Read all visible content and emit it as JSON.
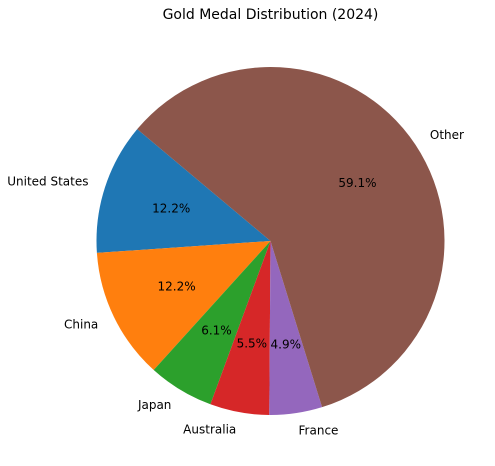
{
  "chart_data": {
    "type": "pie",
    "title": "Gold Medal Distribution (2024)",
    "start_angle_deg": 140,
    "direction": "counterclockwise",
    "categories": [
      "United States",
      "China",
      "Japan",
      "Australia",
      "France",
      "Other"
    ],
    "values": [
      12.2,
      12.2,
      6.1,
      5.5,
      4.9,
      59.1
    ],
    "percent_labels": [
      "12.2%",
      "12.2%",
      "6.1%",
      "5.5%",
      "4.9%",
      "59.1%"
    ],
    "colors": [
      "#1f77b4",
      "#ff7f0e",
      "#2ca02c",
      "#d62728",
      "#9467bd",
      "#8c564b"
    ]
  }
}
